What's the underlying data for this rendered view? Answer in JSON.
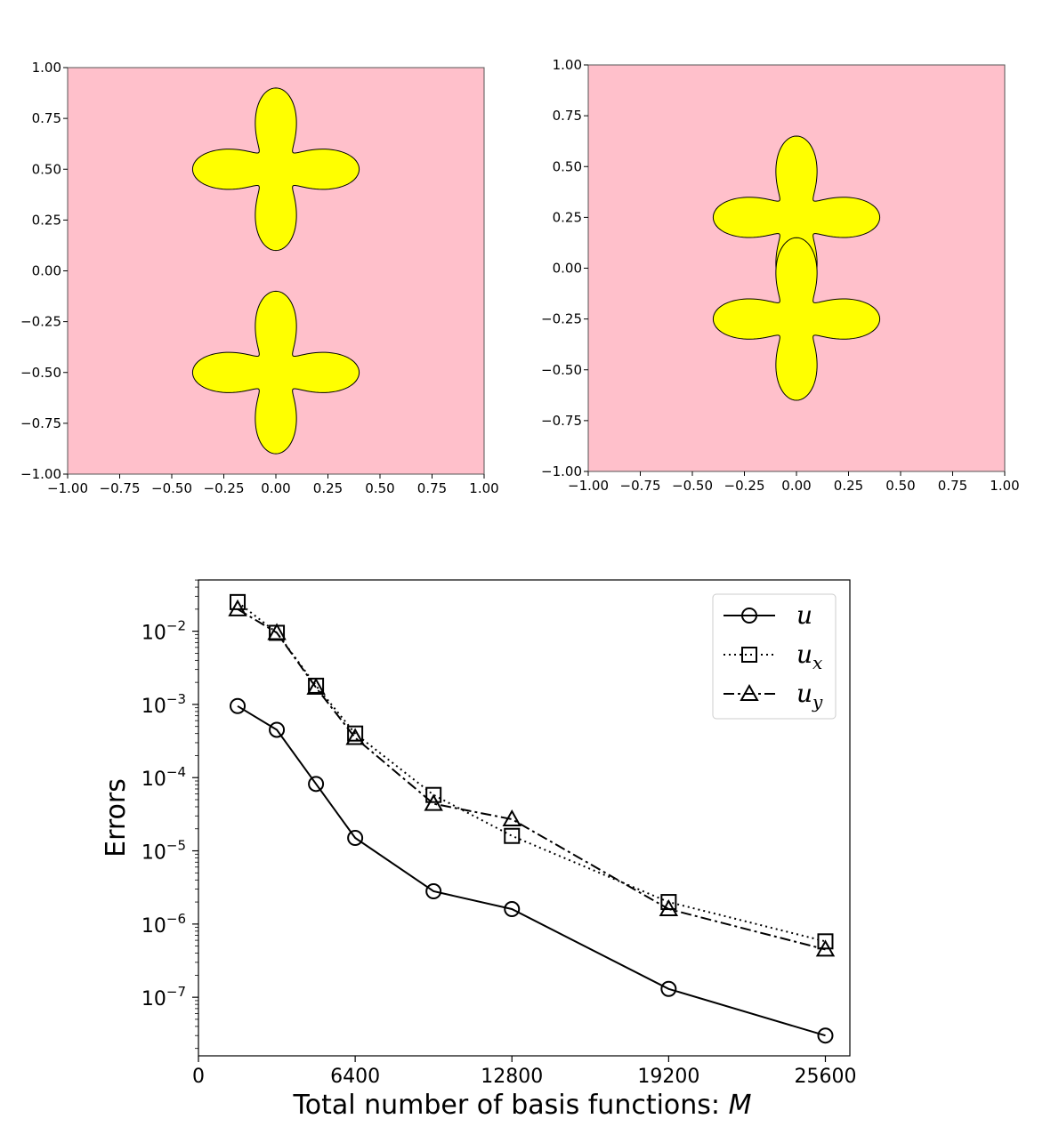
{
  "chart_data": [
    {
      "type": "contour",
      "panel": "left",
      "xlim": [
        -1.0,
        1.0
      ],
      "ylim": [
        -1.0,
        1.0
      ],
      "xticks": [
        "−1.00",
        "−0.75",
        "−0.50",
        "−0.25",
        "0.00",
        "0.25",
        "0.50",
        "0.75",
        "1.00"
      ],
      "yticks": [
        "−1.00",
        "−0.75",
        "−0.50",
        "−0.25",
        "0.00",
        "0.25",
        "0.50",
        "0.75",
        "1.00"
      ],
      "background_color": "#FFC0CB",
      "region_color": "#FFFF00",
      "shapes": [
        {
          "center": [
            0.0,
            0.5
          ],
          "x_extent": [
            -0.4,
            0.4
          ],
          "y_extent": [
            0.1,
            0.9
          ]
        },
        {
          "center": [
            0.0,
            -0.5
          ],
          "x_extent": [
            -0.4,
            0.4
          ],
          "y_extent": [
            -0.9,
            -0.1
          ]
        }
      ]
    },
    {
      "type": "contour",
      "panel": "right",
      "xlim": [
        -1.0,
        1.0
      ],
      "ylim": [
        -1.0,
        1.0
      ],
      "xticks": [
        "−1.00",
        "−0.75",
        "−0.50",
        "−0.25",
        "0.00",
        "0.25",
        "0.50",
        "0.75",
        "1.00"
      ],
      "yticks": [
        "−1.00",
        "−0.75",
        "−0.50",
        "−0.25",
        "0.00",
        "0.25",
        "0.50",
        "0.75",
        "1.00"
      ],
      "background_color": "#FFC0CB",
      "region_color": "#FFFF00",
      "shapes": [
        {
          "center": [
            0.0,
            0.25
          ],
          "x_extent": [
            -0.4,
            0.4
          ],
          "y_extent": [
            -0.15,
            0.65
          ]
        },
        {
          "center": [
            0.0,
            -0.25
          ],
          "x_extent": [
            -0.4,
            0.4
          ],
          "y_extent": [
            -0.65,
            0.15
          ]
        }
      ]
    },
    {
      "type": "line",
      "panel": "bottom",
      "x_scale": "linear",
      "y_scale": "log",
      "xlim": [
        0,
        26600
      ],
      "ylim_log10": [
        -7.8,
        -1.3
      ],
      "xticks": [
        {
          "value": 0,
          "label": "0"
        },
        {
          "value": 6400,
          "label": "6400"
        },
        {
          "value": 12800,
          "label": "12800"
        },
        {
          "value": 19200,
          "label": "19200"
        },
        {
          "value": 25600,
          "label": "25600"
        }
      ],
      "yticks": [
        {
          "exp": -2,
          "base": "10",
          "sup": "−2"
        },
        {
          "exp": -3,
          "base": "10",
          "sup": "−3"
        },
        {
          "exp": -4,
          "base": "10",
          "sup": "−4"
        },
        {
          "exp": -5,
          "base": "10",
          "sup": "−5"
        },
        {
          "exp": -6,
          "base": "10",
          "sup": "−6"
        },
        {
          "exp": -7,
          "base": "10",
          "sup": "−7"
        }
      ],
      "xlabel_prefix": "Total number of basis functions: ",
      "xlabel_var": "M",
      "ylabel": "Errors",
      "legend_position": "upper right",
      "x": [
        1600,
        3200,
        4800,
        6400,
        9600,
        12800,
        19200,
        25600
      ],
      "series": [
        {
          "name": "u",
          "name_base": "u",
          "name_sub": "",
          "marker": "circle",
          "linestyle": "solid",
          "values": [
            0.00095,
            0.00045,
            8.2e-05,
            1.5e-05,
            2.8e-06,
            1.6e-06,
            1.3e-07,
            3e-08
          ]
        },
        {
          "name": "u_x",
          "name_base": "u",
          "name_sub": "x",
          "marker": "square",
          "linestyle": "dotted",
          "values": [
            0.025,
            0.0095,
            0.0018,
            0.0004,
            5.8e-05,
            1.6e-05,
            2e-06,
            5.8e-07
          ]
        },
        {
          "name": "u_y",
          "name_base": "u",
          "name_sub": "y",
          "marker": "triangle",
          "linestyle": "dashdot",
          "values": [
            0.02,
            0.0095,
            0.0017,
            0.00035,
            4.4e-05,
            2.7e-05,
            1.6e-06,
            4.5e-07
          ]
        }
      ]
    }
  ]
}
